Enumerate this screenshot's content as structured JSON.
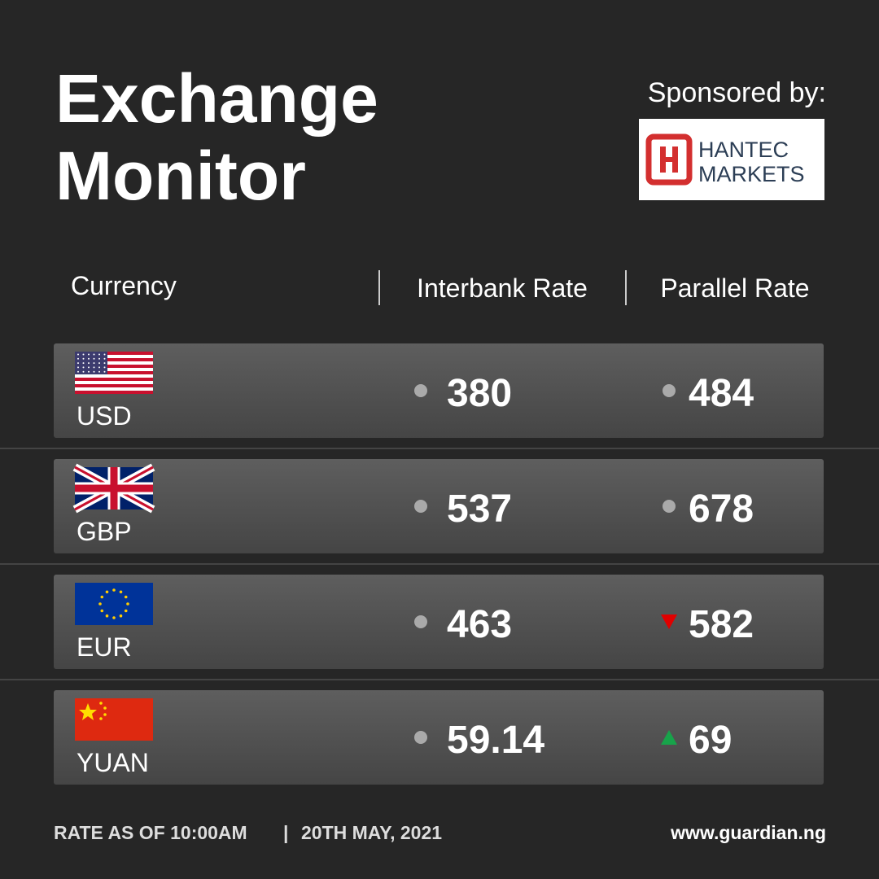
{
  "header": {
    "title_lines": [
      "Exchange",
      "Monitor"
    ],
    "sponsor_label": "Sponsored by:",
    "sponsor_logo_lines": [
      "HANTEC",
      "MARKETS"
    ]
  },
  "table": {
    "columns": [
      "Currency",
      "Interbank Rate",
      "Parallel Rate"
    ],
    "rows": [
      {
        "currency": "USD",
        "interbank": 380,
        "interbank_trend": "flat",
        "parallel": 484,
        "parallel_trend": "flat"
      },
      {
        "currency": "GBP",
        "interbank": 537,
        "interbank_trend": "flat",
        "parallel": 678,
        "parallel_trend": "flat"
      },
      {
        "currency": "EUR",
        "interbank": 463,
        "interbank_trend": "flat",
        "parallel": 582,
        "parallel_trend": "down"
      },
      {
        "currency": "YUAN",
        "interbank": 59.14,
        "interbank_trend": "flat",
        "parallel": 69,
        "parallel_trend": "up"
      }
    ]
  },
  "footer": {
    "rate_time": "RATE AS OF 10:00AM",
    "date": "20TH MAY, 2021",
    "website": "www.guardian.ng"
  }
}
